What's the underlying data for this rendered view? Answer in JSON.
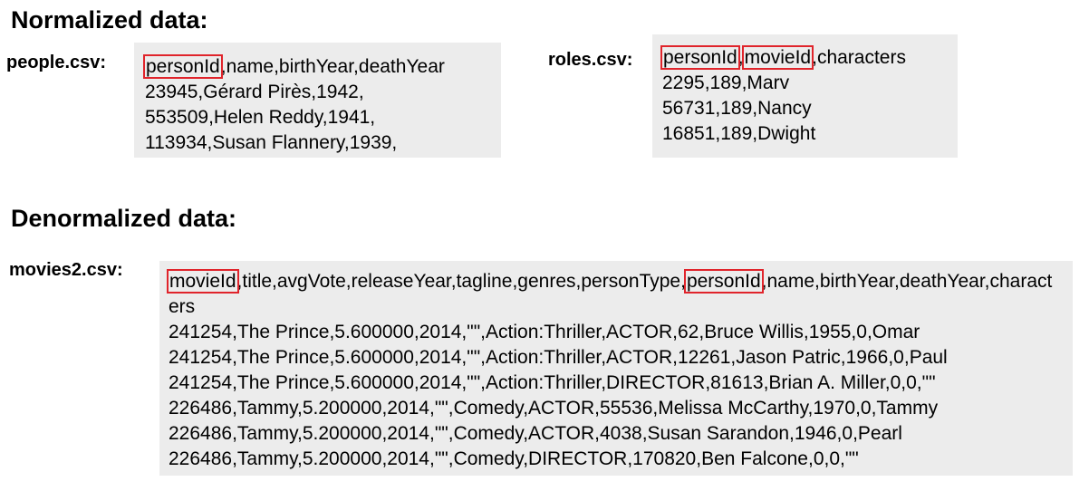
{
  "normalized": {
    "heading": "Normalized data:",
    "people": {
      "file_label": "people.csv:",
      "header": {
        "highlighted": "personId",
        "rest": ",name,birthYear,deathYear"
      },
      "rows": [
        "23945,Gérard Pirès,1942,",
        "553509,Helen Reddy,1941,",
        "113934,Susan Flannery,1939,"
      ]
    },
    "roles": {
      "file_label": "roles.csv:",
      "header": {
        "hl1": "personId",
        "sep": ",",
        "hl2": "movieId",
        "rest": ",characters"
      },
      "rows": [
        "2295,189,Marv",
        "56731,189,Nancy",
        "16851,189,Dwight"
      ]
    }
  },
  "denormalized": {
    "heading": "Denormalized data:",
    "movies2": {
      "file_label": "movies2.csv:",
      "header": {
        "hl1": "movieId",
        "mid": ",title,avgVote,releaseYear,tagline,genres,personType,",
        "hl2": "personId",
        "rest": ",name,birthYear,deathYear,characters"
      },
      "rows": [
        "241254,The Prince,5.600000,2014,\"\",Action:Thriller,ACTOR,62,Bruce Willis,1955,0,Omar",
        "241254,The Prince,5.600000,2014,\"\",Action:Thriller,ACTOR,12261,Jason Patric,1966,0,Paul",
        "241254,The Prince,5.600000,2014,\"\",Action:Thriller,DIRECTOR,81613,Brian A. Miller,0,0,\"\"",
        "226486,Tammy,5.200000,2014,\"\",Comedy,ACTOR,55536,Melissa McCarthy,1970,0,Tammy",
        "226486,Tammy,5.200000,2014,\"\",Comedy,ACTOR,4038,Susan Sarandon,1946,0,Pearl",
        "226486,Tammy,5.200000,2014,\"\",Comedy,DIRECTOR,170820,Ben Falcone,0,0,\"\""
      ]
    }
  },
  "colors": {
    "box_background": "#ececec",
    "highlight_border": "#e0242b"
  }
}
